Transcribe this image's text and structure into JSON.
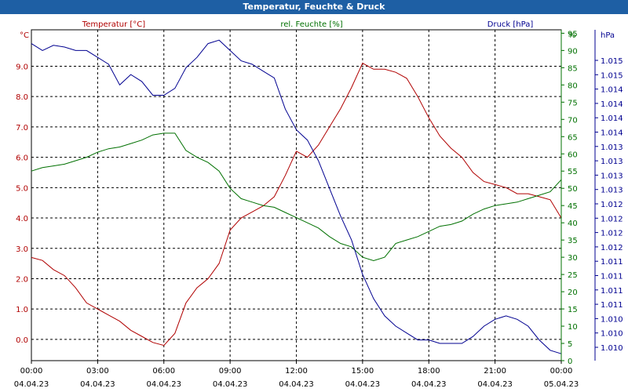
{
  "chart_data": {
    "type": "line",
    "title": "Temperatur, Feuchte & Druck",
    "axes": {
      "temperature": {
        "unit": "°C",
        "range": [
          -0.7,
          10.2
        ],
        "ticks": [
          0.0,
          1.0,
          2.0,
          3.0,
          4.0,
          5.0,
          6.0,
          7.0,
          8.0,
          9.0
        ]
      },
      "humidity": {
        "unit": "%",
        "range": [
          0,
          96
        ],
        "ticks": [
          0,
          5,
          10,
          15,
          20,
          25,
          30,
          35,
          40,
          45,
          50,
          55,
          60,
          65,
          70,
          75,
          80,
          85,
          90,
          95
        ]
      },
      "pressure": {
        "unit": "hPa",
        "ticks": [
          "1.010",
          "1.010",
          "1.010",
          "1.011",
          "1.011",
          "1.011",
          "1.011",
          "1.012",
          "1.012",
          "1.012",
          "1.012",
          "1.013",
          "1.013",
          "1.013",
          "1.013",
          "1.014",
          "1.014",
          "1.014",
          "1.014",
          "1.015",
          "1.015"
        ]
      }
    },
    "x_ticks": [
      {
        "time": "00:00",
        "date": "04.04.23"
      },
      {
        "time": "03:00",
        "date": "04.04.23"
      },
      {
        "time": "06:00",
        "date": "04.04.23"
      },
      {
        "time": "09:00",
        "date": "04.04.23"
      },
      {
        "time": "12:00",
        "date": "04.04.23"
      },
      {
        "time": "15:00",
        "date": "04.04.23"
      },
      {
        "time": "18:00",
        "date": "04.04.23"
      },
      {
        "time": "21:00",
        "date": "04.04.23"
      },
      {
        "time": "00:00",
        "date": "05.04.23"
      }
    ],
    "grid": true,
    "hours": [
      0,
      0.5,
      1,
      1.5,
      2,
      2.5,
      3,
      3.5,
      4,
      4.5,
      5,
      5.5,
      6,
      6.5,
      7,
      7.5,
      8,
      8.5,
      9,
      9.5,
      10,
      10.5,
      11,
      11.5,
      12,
      12.5,
      13,
      13.5,
      14,
      14.5,
      15,
      15.5,
      16,
      16.5,
      17,
      17.5,
      18,
      18.5,
      19,
      19.5,
      20,
      20.5,
      21,
      21.5,
      22,
      22.5,
      23,
      23.5,
      24
    ],
    "series": [
      {
        "name": "Temperatur [°C]",
        "axis": "temperature",
        "color": "#b00000",
        "values": [
          2.7,
          2.6,
          2.3,
          2.1,
          1.7,
          1.2,
          1.0,
          0.8,
          0.6,
          0.3,
          0.1,
          -0.1,
          -0.2,
          0.2,
          1.2,
          1.7,
          2.0,
          2.5,
          3.6,
          4.0,
          4.2,
          4.4,
          4.7,
          5.4,
          6.2,
          6.0,
          6.4,
          7.0,
          7.6,
          8.3,
          9.1,
          8.9,
          8.9,
          8.8,
          8.6,
          8.0,
          7.3,
          6.7,
          6.3,
          6.0,
          5.5,
          5.2,
          5.1,
          5.0,
          4.8,
          4.8,
          4.7,
          4.6,
          4.0
        ]
      },
      {
        "name": "rel. Feuchte [%]",
        "axis": "humidity",
        "color": "#007000",
        "values": [
          55,
          56,
          56.5,
          57,
          58,
          59,
          60.5,
          61.5,
          62,
          63,
          64,
          65.5,
          66,
          66,
          61,
          59,
          57.5,
          55,
          50,
          47,
          46,
          45,
          44.5,
          43,
          41.5,
          40,
          38.5,
          36,
          34,
          33,
          30,
          29,
          30,
          34,
          35,
          36,
          37.5,
          39,
          39.5,
          40.5,
          42.5,
          44,
          45,
          45.5,
          46,
          47,
          48,
          49,
          52.5
        ]
      },
      {
        "name": "Druck [hPa]",
        "axis": "pressure",
        "color": "#000090",
        "values": [
          92,
          90,
          91.5,
          91,
          90,
          90,
          88,
          86,
          80,
          83,
          81,
          77,
          77,
          79,
          85,
          88,
          92,
          93,
          90,
          87,
          86,
          84,
          82,
          73,
          67,
          64,
          58,
          50,
          42,
          35,
          25,
          18,
          13,
          10,
          8,
          6,
          6,
          5,
          5,
          5,
          7,
          10,
          12,
          13,
          12,
          10,
          6,
          3,
          2
        ]
      }
    ]
  }
}
